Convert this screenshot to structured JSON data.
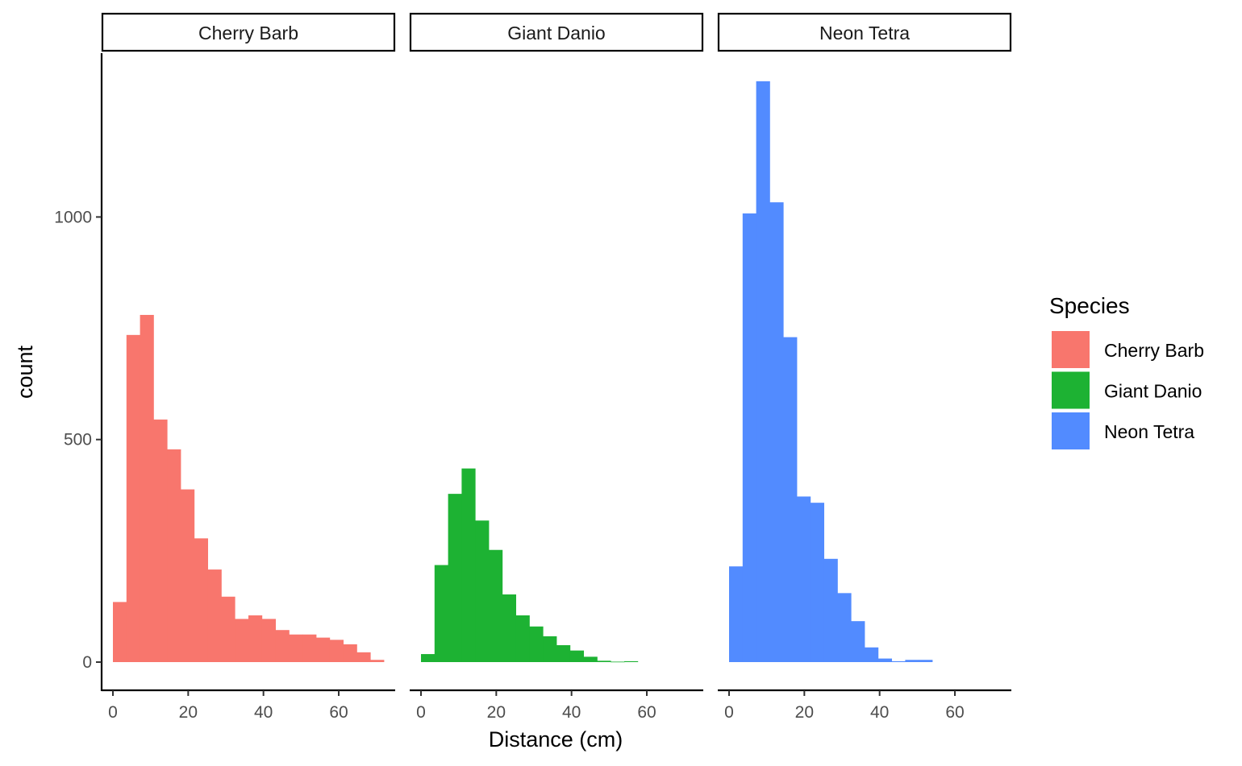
{
  "chart_data": {
    "type": "bar",
    "subtype": "faceted-histogram",
    "xlabel": "Distance (cm)",
    "ylabel": "count",
    "xlim": [
      -3,
      75
    ],
    "ylim": [
      -65,
      1370
    ],
    "x_ticks": [
      0,
      20,
      40,
      60
    ],
    "y_ticks": [
      0,
      500,
      1000
    ],
    "bin_width": 3.6,
    "grid": false,
    "legend": {
      "title": "Species",
      "position": "right",
      "entries": [
        "Cherry Barb",
        "Giant Danio",
        "Neon Tetra"
      ]
    },
    "series": [
      {
        "name": "Cherry Barb",
        "color": "#F8766D",
        "bins_start": [
          0.0,
          3.6,
          7.2,
          10.8,
          14.4,
          18.0,
          21.6,
          25.2,
          28.8,
          32.4,
          36.0,
          39.6,
          43.2,
          46.8,
          50.4,
          54.0,
          57.6,
          61.2,
          64.8,
          68.4
        ],
        "values": [
          135,
          735,
          780,
          545,
          478,
          388,
          278,
          208,
          147,
          97,
          105,
          97,
          72,
          62,
          62,
          55,
          50,
          40,
          22,
          5
        ]
      },
      {
        "name": "Giant Danio",
        "color": "#1DB233",
        "bins_start": [
          0.0,
          3.6,
          7.2,
          10.8,
          14.4,
          18.0,
          21.6,
          25.2,
          28.8,
          32.4,
          36.0,
          39.6,
          43.2,
          46.8,
          50.4,
          54.0
        ],
        "values": [
          18,
          218,
          378,
          435,
          318,
          252,
          152,
          105,
          80,
          58,
          38,
          26,
          12,
          3,
          1,
          2
        ]
      },
      {
        "name": "Neon Tetra",
        "color": "#528BFF",
        "bins_start": [
          0.0,
          3.6,
          7.2,
          10.8,
          14.4,
          18.0,
          21.6,
          25.2,
          28.8,
          32.4,
          36.0,
          39.6,
          43.2,
          46.8,
          50.4
        ],
        "values": [
          215,
          1008,
          1305,
          1033,
          730,
          372,
          358,
          232,
          155,
          92,
          33,
          8,
          2,
          5,
          5
        ]
      }
    ]
  }
}
